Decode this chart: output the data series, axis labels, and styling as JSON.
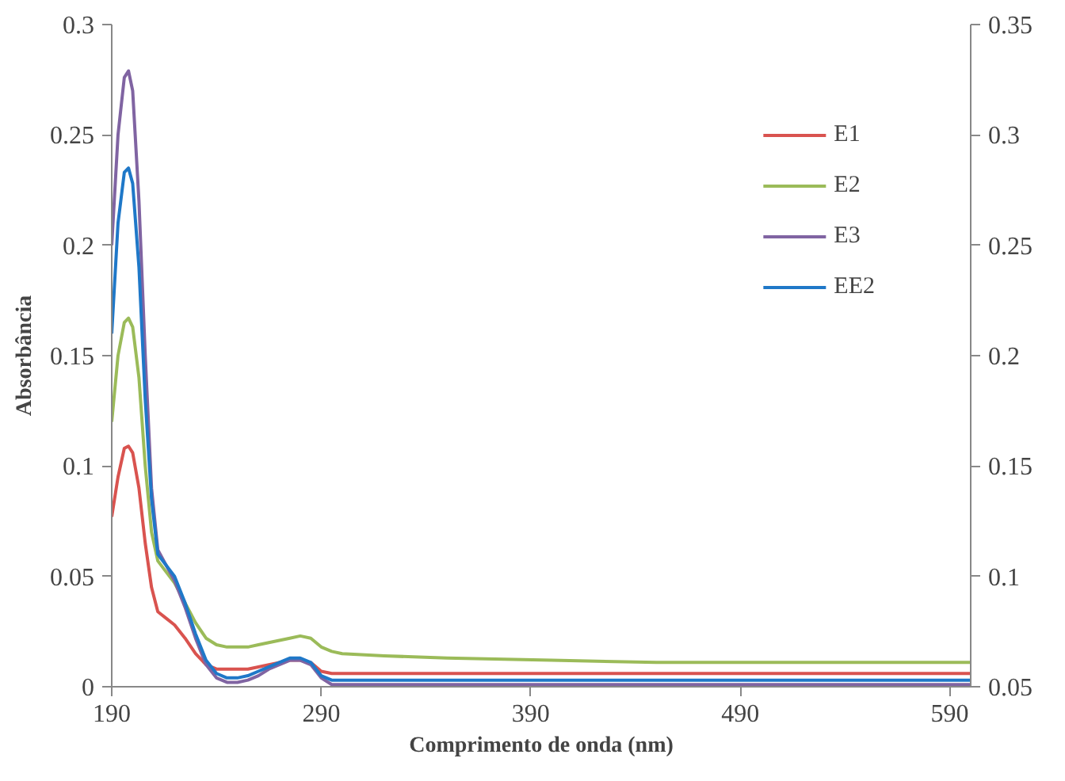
{
  "chart_data": {
    "type": "line",
    "xlabel": "Comprimento de onda (nm)",
    "ylabel": "Absorbância",
    "x": [
      190,
      193,
      196,
      198,
      200,
      203,
      206,
      209,
      212,
      216,
      220,
      225,
      230,
      235,
      240,
      245,
      250,
      255,
      260,
      265,
      270,
      275,
      280,
      285,
      290,
      295,
      300,
      320,
      350,
      400,
      450,
      500,
      550,
      600
    ],
    "series": [
      {
        "name": "E1",
        "color": "#d9534f",
        "values": [
          0.077,
          0.095,
          0.108,
          0.109,
          0.106,
          0.09,
          0.065,
          0.045,
          0.034,
          0.031,
          0.028,
          0.022,
          0.015,
          0.01,
          0.008,
          0.008,
          0.008,
          0.008,
          0.009,
          0.01,
          0.011,
          0.012,
          0.012,
          0.011,
          0.007,
          0.006,
          0.006,
          0.006,
          0.006,
          0.006,
          0.006,
          0.006,
          0.006,
          0.006
        ]
      },
      {
        "name": "E2",
        "color": "#9bbb59",
        "values": [
          0.12,
          0.15,
          0.165,
          0.167,
          0.163,
          0.14,
          0.1,
          0.07,
          0.057,
          0.052,
          0.047,
          0.038,
          0.029,
          0.022,
          0.019,
          0.018,
          0.018,
          0.018,
          0.019,
          0.02,
          0.021,
          0.022,
          0.023,
          0.022,
          0.018,
          0.016,
          0.015,
          0.014,
          0.013,
          0.012,
          0.011,
          0.011,
          0.011,
          0.011
        ]
      },
      {
        "name": "E3",
        "color": "#8064a2",
        "values": [
          0.2,
          0.25,
          0.276,
          0.279,
          0.27,
          0.22,
          0.15,
          0.09,
          0.062,
          0.055,
          0.048,
          0.036,
          0.022,
          0.01,
          0.004,
          0.002,
          0.002,
          0.003,
          0.005,
          0.008,
          0.01,
          0.012,
          0.012,
          0.01,
          0.004,
          0.001,
          0.001,
          0.001,
          0.001,
          0.001,
          0.001,
          0.001,
          0.001,
          0.001
        ]
      },
      {
        "name": "EE2",
        "color": "#1f78c8",
        "values": [
          0.16,
          0.21,
          0.233,
          0.235,
          0.228,
          0.19,
          0.13,
          0.085,
          0.06,
          0.055,
          0.05,
          0.038,
          0.024,
          0.012,
          0.006,
          0.004,
          0.004,
          0.005,
          0.007,
          0.009,
          0.011,
          0.013,
          0.013,
          0.011,
          0.005,
          0.003,
          0.003,
          0.003,
          0.003,
          0.003,
          0.003,
          0.003,
          0.003,
          0.003
        ]
      }
    ],
    "xlim": [
      190,
      600
    ],
    "xticks": [
      190,
      290,
      390,
      490,
      590
    ],
    "ylim": [
      0,
      0.3
    ],
    "yticks": [
      0,
      0.05,
      0.1,
      0.15,
      0.2,
      0.25,
      0.3
    ],
    "y2lim": [
      0.05,
      0.35
    ],
    "y2ticks": [
      0.05,
      0.1,
      0.15,
      0.2,
      0.25,
      0.3,
      0.35
    ],
    "legend": "top right",
    "grid": false,
    "marker": "none",
    "line_style": "solid"
  }
}
